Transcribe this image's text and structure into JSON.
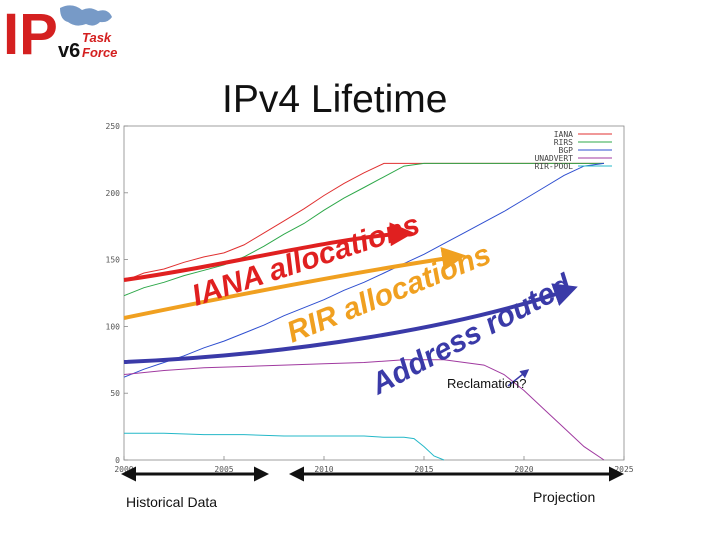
{
  "slide": {
    "title": "IPv4 Lifetime"
  },
  "logo": {
    "big_letters": "IP",
    "small_letters": "v6",
    "line1": "Task",
    "line2": "Force"
  },
  "chart_data": {
    "type": "line",
    "x_domain": [
      2000,
      2025
    ],
    "y_domain": [
      0,
      250
    ],
    "x_ticks": [
      2000,
      2005,
      2010,
      2015,
      2020,
      2025
    ],
    "y_ticks": [
      0,
      50,
      100,
      150,
      200,
      250
    ],
    "x_tick_labels": [
      "2000",
      "2005",
      "2010",
      "2015",
      "2020",
      "2025"
    ],
    "y_tick_labels": [
      "0",
      "50",
      "100",
      "150",
      "200",
      "250"
    ],
    "legend_position": "top-right",
    "grid": false,
    "series": [
      {
        "name": "IANA",
        "color": "#e03030",
        "points": [
          [
            2000,
            134
          ],
          [
            2001,
            140
          ],
          [
            2002,
            143
          ],
          [
            2003,
            148
          ],
          [
            2004,
            152
          ],
          [
            2005,
            155
          ],
          [
            2006,
            161
          ],
          [
            2007,
            170
          ],
          [
            2008,
            179
          ],
          [
            2009,
            188
          ],
          [
            2010,
            198
          ],
          [
            2011,
            207
          ],
          [
            2012,
            215
          ],
          [
            2013,
            222
          ],
          [
            2014,
            222
          ],
          [
            2015,
            222
          ],
          [
            2016,
            222
          ],
          [
            2017,
            222
          ],
          [
            2018,
            222
          ],
          [
            2019,
            222
          ],
          [
            2020,
            222
          ],
          [
            2021,
            222
          ],
          [
            2022,
            222
          ],
          [
            2023,
            222
          ],
          [
            2024,
            222
          ]
        ]
      },
      {
        "name": "RIRS",
        "color": "#2ea84a",
        "points": [
          [
            2000,
            123
          ],
          [
            2001,
            129
          ],
          [
            2002,
            133
          ],
          [
            2003,
            138
          ],
          [
            2004,
            142
          ],
          [
            2005,
            146
          ],
          [
            2006,
            152
          ],
          [
            2007,
            160
          ],
          [
            2008,
            169
          ],
          [
            2009,
            177
          ],
          [
            2010,
            187
          ],
          [
            2011,
            196
          ],
          [
            2012,
            204
          ],
          [
            2013,
            212
          ],
          [
            2014,
            220
          ],
          [
            2015,
            222
          ],
          [
            2016,
            222
          ],
          [
            2017,
            222
          ],
          [
            2018,
            222
          ],
          [
            2019,
            222
          ],
          [
            2020,
            222
          ],
          [
            2021,
            222
          ],
          [
            2022,
            222
          ],
          [
            2023,
            222
          ],
          [
            2024,
            222
          ]
        ]
      },
      {
        "name": "BGP",
        "color": "#2f4fd0",
        "points": [
          [
            2000,
            62
          ],
          [
            2001,
            68
          ],
          [
            2002,
            73
          ],
          [
            2003,
            78
          ],
          [
            2004,
            84
          ],
          [
            2005,
            89
          ],
          [
            2006,
            95
          ],
          [
            2007,
            101
          ],
          [
            2008,
            108
          ],
          [
            2009,
            114
          ],
          [
            2010,
            120
          ],
          [
            2011,
            127
          ],
          [
            2012,
            133
          ],
          [
            2013,
            140
          ],
          [
            2014,
            147
          ],
          [
            2015,
            154
          ],
          [
            2016,
            162
          ],
          [
            2017,
            170
          ],
          [
            2018,
            178
          ],
          [
            2019,
            186
          ],
          [
            2020,
            195
          ],
          [
            2021,
            204
          ],
          [
            2022,
            213
          ],
          [
            2023,
            220
          ],
          [
            2024,
            222
          ]
        ]
      },
      {
        "name": "UNADVERT",
        "color": "#a03aa0",
        "points": [
          [
            2000,
            64
          ],
          [
            2002,
            67
          ],
          [
            2004,
            69
          ],
          [
            2006,
            70
          ],
          [
            2008,
            71
          ],
          [
            2010,
            72
          ],
          [
            2012,
            73
          ],
          [
            2014,
            75
          ],
          [
            2016,
            75
          ],
          [
            2018,
            71
          ],
          [
            2019,
            64
          ],
          [
            2020,
            52
          ],
          [
            2021,
            38
          ],
          [
            2022,
            24
          ],
          [
            2023,
            10
          ],
          [
            2024,
            0
          ]
        ]
      },
      {
        "name": "RIR-POOL",
        "color": "#24b8c8",
        "points": [
          [
            2000,
            20
          ],
          [
            2002,
            20
          ],
          [
            2004,
            19
          ],
          [
            2006,
            19
          ],
          [
            2008,
            18
          ],
          [
            2010,
            18
          ],
          [
            2012,
            18
          ],
          [
            2013,
            17
          ],
          [
            2014,
            17
          ],
          [
            2014.5,
            16
          ],
          [
            2015,
            10
          ],
          [
            2015.5,
            3
          ],
          [
            2016,
            0
          ]
        ]
      }
    ]
  },
  "annotations": {
    "iana": "IANA allocations",
    "rir": "RIR allocations",
    "routed": "Address routed",
    "reclaim": "Reclamation?"
  },
  "timeline": {
    "historical": "Historical Data",
    "projection": "Projection"
  }
}
